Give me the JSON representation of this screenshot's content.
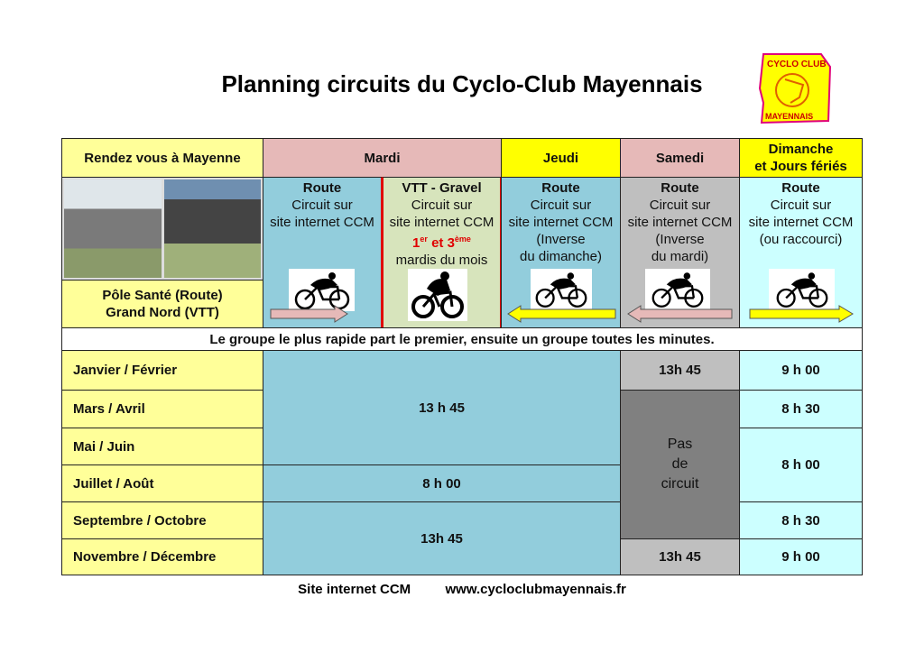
{
  "title": "Planning circuits du Cyclo-Club Mayennais",
  "logo": {
    "text_top": "Cyclo Club",
    "text_bottom": "Mayennais"
  },
  "header": {
    "rdv": "Rendez vous à Mayenne",
    "mardi": "Mardi",
    "jeudi": "Jeudi",
    "samedi": "Samedi",
    "dimanche_1": "Dimanche",
    "dimanche_2": "et Jours fériés"
  },
  "location": {
    "line1": "Pôle Santé (Route)",
    "line2": "Grand Nord (VTT)"
  },
  "circuits": {
    "mardi_route": {
      "type": "Route",
      "l1": "Circuit sur",
      "l2": "site internet CCM"
    },
    "mardi_vtt": {
      "type": "VTT - Gravel",
      "l1": "Circuit sur",
      "l2": "site internet CCM",
      "n1": "1",
      "s1": "er",
      "mid": " et 3",
      "s2": "ème",
      "l4": "mardis du mois"
    },
    "jeudi": {
      "type": "Route",
      "l1": "Circuit sur",
      "l2": "site internet CCM",
      "l3": "(Inverse",
      "l4": "du dimanche)"
    },
    "samedi": {
      "type": "Route",
      "l1": "Circuit sur",
      "l2": "site internet CCM",
      "l3": "(Inverse",
      "l4": "du mardi)"
    },
    "dimanche": {
      "type": "Route",
      "l1": "Circuit sur",
      "l2": "site internet CCM",
      "l3": "(ou raccourci)"
    }
  },
  "notice": "Le groupe le plus rapide part le premier, ensuite un groupe toutes les minutes.",
  "months": [
    "Janvier / Février",
    "Mars / Avril",
    "Mai / Juin",
    "Juillet / Août",
    "Septembre / Octobre",
    "Novembre / Décembre"
  ],
  "mardi_jeudi_times": {
    "jan_jun": "13 h 45",
    "jul_aug": "8 h 00",
    "sep_dec": "13h 45"
  },
  "samedi_times": {
    "jan_feb": "13h 45",
    "closed_1": "Pas",
    "closed_2": "de",
    "closed_3": "circuit",
    "nov_dec": "13h 45"
  },
  "dimanche_times": [
    "9 h 00",
    "8 h 30",
    "8 h 00",
    "8 h 30",
    "9 h 00"
  ],
  "footer": {
    "label": "Site internet CCM",
    "url": "www.cycloclubmayennais.fr"
  },
  "colors": {
    "yellow_light": "#ffff99",
    "yellow": "#ffff00",
    "pink": "#e6b9b8",
    "blue": "#92cddc",
    "green": "#d7e4bc",
    "gray": "#bfbfbf",
    "dark_gray": "#808080",
    "cyan": "#ccffff"
  }
}
